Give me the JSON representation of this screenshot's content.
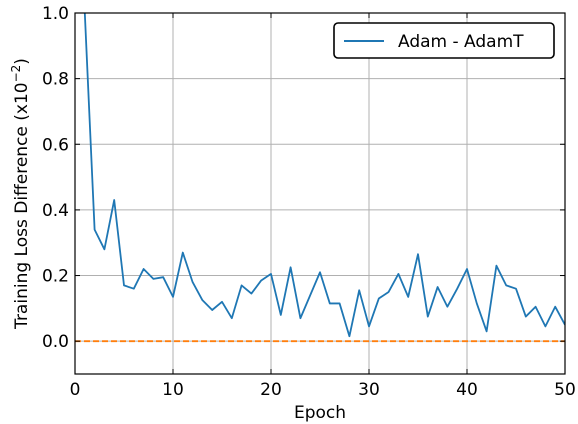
{
  "chart_data": {
    "type": "line",
    "title": "",
    "xlabel": "Epoch",
    "ylabel": "Training Loss Difference (x10",
    "ylabel_exponent": "−2",
    "ylabel_suffix": ")",
    "xlim": [
      0,
      50
    ],
    "ylim": [
      -0.1,
      1.0
    ],
    "xticks": [
      0,
      10,
      20,
      30,
      40,
      50
    ],
    "yticks": [
      0.0,
      0.2,
      0.4,
      0.6,
      0.8,
      1.0
    ],
    "xtick_labels": [
      "0",
      "10",
      "20",
      "30",
      "40",
      "50"
    ],
    "ytick_labels": [
      "0.0",
      "0.2",
      "0.4",
      "0.6",
      "0.8",
      "1.0"
    ],
    "grid": true,
    "legend_position": "top-right",
    "series": [
      {
        "name": "Adam - AdamT",
        "color": "#1f77b4",
        "style": "solid",
        "x": [
          1,
          2,
          3,
          4,
          5,
          6,
          7,
          8,
          9,
          10,
          11,
          12,
          13,
          14,
          15,
          16,
          17,
          18,
          19,
          20,
          21,
          22,
          23,
          24,
          25,
          26,
          27,
          28,
          29,
          30,
          31,
          32,
          33,
          34,
          35,
          36,
          37,
          38,
          39,
          40,
          41,
          42,
          43,
          44,
          45,
          46,
          47,
          48,
          49,
          50
        ],
        "values": [
          1.0,
          0.34,
          0.28,
          0.43,
          0.17,
          0.16,
          0.22,
          0.19,
          0.195,
          0.135,
          0.27,
          0.18,
          0.125,
          0.095,
          0.12,
          0.07,
          0.17,
          0.145,
          0.185,
          0.205,
          0.08,
          0.225,
          0.07,
          0.14,
          0.21,
          0.115,
          0.115,
          0.015,
          0.155,
          0.045,
          0.13,
          0.15,
          0.205,
          0.135,
          0.265,
          0.075,
          0.165,
          0.105,
          0.16,
          0.22,
          0.115,
          0.03,
          0.23,
          0.17,
          0.16,
          0.075,
          0.105,
          0.045,
          0.105,
          0.05
        ]
      },
      {
        "name": "",
        "color": "#ff7f0e",
        "style": "dashed",
        "x": [
          0,
          50
        ],
        "values": [
          0.0,
          0.0
        ]
      }
    ]
  }
}
